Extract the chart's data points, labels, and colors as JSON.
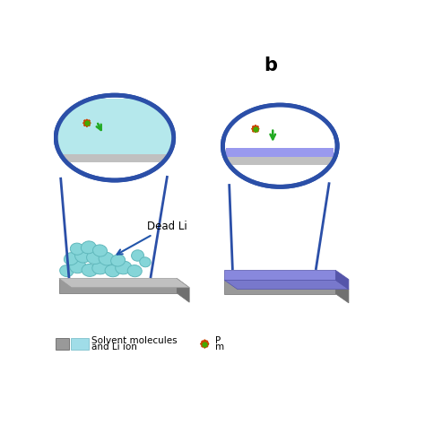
{
  "bg_color": "#ffffff",
  "blue_color": "#2B4FA8",
  "blue_lw": 3.5,
  "gray_light": "#c0c0c0",
  "gray_mid": "#999999",
  "gray_dark": "#707070",
  "cyan_blob": "#85d5d8",
  "cyan_blob_edge": "#60b8bc",
  "cyan_light": "#b5e8ec",
  "purple_sei": "#7878cc",
  "purple_sei_dark": "#5555aa",
  "orange_cross": "#cc4400",
  "green_dot": "#44aa00",
  "green_arrow": "#22aa22",
  "arrow_blue": "#2255aa",
  "label_b": "b",
  "label_dead": "Dead Li",
  "label_solvent": "Solvent molecules",
  "label_li_ion": "and Li ion",
  "figsize": [
    4.74,
    4.74
  ],
  "dpi": 100
}
